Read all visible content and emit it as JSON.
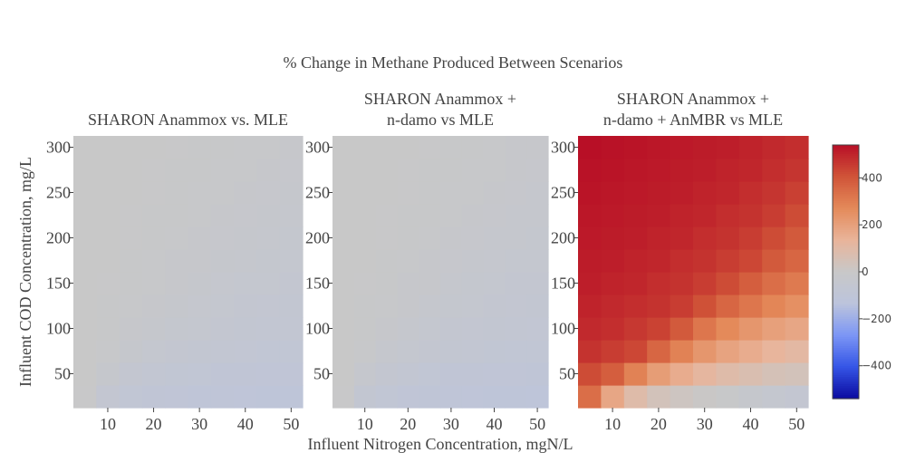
{
  "title": "% Change in Methane Produced Between Scenarios",
  "xlabel": "Influent Nitrogen Concentration, mgN/L",
  "ylabel": "Influent COD Concentration, mg/L",
  "chart_data": [
    {
      "type": "heatmap",
      "title_lines": [
        "SHARON Anammox vs. MLE"
      ],
      "x": [
        5,
        10,
        15,
        20,
        25,
        30,
        35,
        40,
        45,
        50
      ],
      "y": [
        25,
        50,
        75,
        100,
        125,
        150,
        175,
        200,
        225,
        250,
        275,
        300
      ],
      "z": [
        [
          -5,
          -60,
          -80,
          -90,
          -95,
          -100,
          -102,
          -105,
          -107,
          -110
        ],
        [
          -3,
          -30,
          -55,
          -68,
          -75,
          -82,
          -86,
          -90,
          -93,
          -95
        ],
        [
          -2,
          -15,
          -30,
          -45,
          -55,
          -62,
          -68,
          -72,
          -78,
          -80
        ],
        [
          -1,
          -10,
          -20,
          -30,
          -42,
          -50,
          -56,
          -62,
          -66,
          -70
        ],
        [
          -1,
          -6,
          -14,
          -22,
          -30,
          -38,
          -45,
          -52,
          -58,
          -62
        ],
        [
          0,
          -4,
          -10,
          -16,
          -22,
          -30,
          -38,
          -44,
          -50,
          -55
        ],
        [
          0,
          -3,
          -7,
          -12,
          -17,
          -23,
          -30,
          -37,
          -43,
          -48
        ],
        [
          0,
          -2,
          -5,
          -9,
          -13,
          -18,
          -24,
          -30,
          -36,
          -42
        ],
        [
          0,
          -1,
          -4,
          -7,
          -10,
          -14,
          -19,
          -24,
          -30,
          -35
        ],
        [
          0,
          -1,
          -3,
          -5,
          -8,
          -11,
          -15,
          -20,
          -25,
          -30
        ],
        [
          0,
          0,
          -2,
          -4,
          -6,
          -9,
          -12,
          -16,
          -20,
          -24
        ],
        [
          0,
          0,
          -1,
          -3,
          -5,
          -7,
          -10,
          -13,
          -16,
          -20
        ]
      ],
      "xticks": [
        10,
        20,
        30,
        40,
        50
      ],
      "yticks": [
        50,
        100,
        150,
        200,
        250,
        300
      ]
    },
    {
      "type": "heatmap",
      "title_lines": [
        "SHARON Anammox +",
        "n-damo vs MLE"
      ],
      "x": [
        5,
        10,
        15,
        20,
        25,
        30,
        35,
        40,
        45,
        50
      ],
      "y": [
        25,
        50,
        75,
        100,
        125,
        150,
        175,
        200,
        225,
        250,
        275,
        300
      ],
      "z": [
        [
          -5,
          -62,
          -82,
          -92,
          -97,
          -102,
          -105,
          -107,
          -110,
          -112
        ],
        [
          -3,
          -32,
          -57,
          -70,
          -78,
          -85,
          -89,
          -92,
          -95,
          -97
        ],
        [
          -2,
          -16,
          -32,
          -47,
          -57,
          -64,
          -70,
          -74,
          -80,
          -82
        ],
        [
          -1,
          -10,
          -21,
          -32,
          -44,
          -52,
          -58,
          -64,
          -68,
          -72
        ],
        [
          -1,
          -6,
          -15,
          -23,
          -31,
          -40,
          -47,
          -54,
          -60,
          -64
        ],
        [
          0,
          -4,
          -10,
          -17,
          -23,
          -31,
          -40,
          -46,
          -52,
          -57
        ],
        [
          0,
          -3,
          -7,
          -12,
          -18,
          -24,
          -31,
          -38,
          -45,
          -50
        ],
        [
          0,
          -2,
          -5,
          -9,
          -13,
          -19,
          -25,
          -31,
          -37,
          -43
        ],
        [
          0,
          -1,
          -4,
          -7,
          -10,
          -14,
          -20,
          -25,
          -31,
          -36
        ],
        [
          0,
          -1,
          -3,
          -5,
          -8,
          -11,
          -15,
          -21,
          -26,
          -31
        ],
        [
          0,
          0,
          -2,
          -4,
          -6,
          -9,
          -12,
          -16,
          -21,
          -25
        ],
        [
          0,
          0,
          -1,
          -3,
          -5,
          -7,
          -10,
          -13,
          -17,
          -21
        ]
      ],
      "xticks": [
        10,
        20,
        30,
        40,
        50
      ],
      "yticks": [
        50,
        100,
        150,
        200,
        250,
        300
      ]
    },
    {
      "type": "heatmap",
      "title_lines": [
        "SHARON Anammox +",
        "n-damo + AnMBR vs MLE"
      ],
      "x": [
        5,
        10,
        15,
        20,
        25,
        30,
        35,
        40,
        45,
        50
      ],
      "y": [
        25,
        50,
        75,
        100,
        125,
        150,
        175,
        200,
        225,
        250,
        275,
        300
      ],
      "z": [
        [
          340,
          180,
          90,
          40,
          20,
          5,
          -10,
          -30,
          -50,
          -60
        ],
        [
          420,
          380,
          290,
          210,
          160,
          120,
          90,
          70,
          50,
          40
        ],
        [
          470,
          450,
          430,
          360,
          290,
          230,
          190,
          160,
          130,
          110
        ],
        [
          490,
          480,
          460,
          440,
          390,
          320,
          270,
          230,
          200,
          180
        ],
        [
          500,
          490,
          480,
          470,
          450,
          410,
          360,
          320,
          280,
          250
        ],
        [
          510,
          500,
          495,
          480,
          470,
          450,
          420,
          380,
          340,
          310
        ],
        [
          515,
          510,
          500,
          495,
          480,
          470,
          450,
          430,
          390,
          360
        ],
        [
          520,
          515,
          510,
          500,
          495,
          480,
          470,
          450,
          420,
          390
        ],
        [
          525,
          520,
          515,
          510,
          500,
          495,
          480,
          470,
          450,
          420
        ],
        [
          530,
          525,
          520,
          515,
          510,
          500,
          495,
          480,
          465,
          445
        ],
        [
          535,
          530,
          525,
          520,
          515,
          510,
          500,
          495,
          480,
          465
        ],
        [
          540,
          535,
          530,
          525,
          520,
          515,
          510,
          500,
          490,
          480
        ]
      ],
      "xticks": [
        10,
        20,
        30,
        40,
        50
      ],
      "yticks": [
        50,
        100,
        150,
        200,
        250,
        300
      ]
    }
  ],
  "colorbar": {
    "zmin": -540,
    "zmax": 540,
    "ticks": [
      400,
      200,
      0,
      -200,
      -400
    ],
    "tick_labels": [
      "400",
      "200",
      "0",
      "−200",
      "−400"
    ],
    "colorscale": [
      "#0a0aa0",
      "#3555e6",
      "#7c96f5",
      "#bcc4dc",
      "#c8c8c8",
      "#e9b49a",
      "#e48a5a",
      "#d05438",
      "#b80f26"
    ]
  }
}
